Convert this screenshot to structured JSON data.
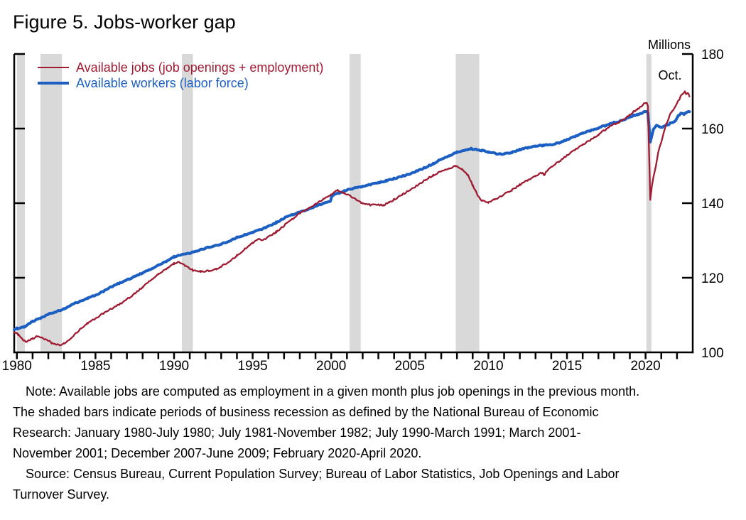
{
  "chart_data": {
    "type": "line",
    "title": "Figure 5. Jobs-worker gap",
    "unit_label": "Millions",
    "annotation": "Oct.",
    "xlabel": "",
    "ylabel": "Millions",
    "xlim": [
      1979.83,
      2023.0
    ],
    "ylim": [
      100,
      180
    ],
    "yticks": [
      100,
      120,
      140,
      160,
      180
    ],
    "xticks_labeled": [
      1980,
      1985,
      1990,
      1995,
      2000,
      2005,
      2010,
      2015,
      2020
    ],
    "xticks_minor_start": 1980,
    "xticks_minor_end": 2023,
    "grid": false,
    "legend_position": "top-left-inside",
    "axis_color": "#000000",
    "recession_color": "#d9d9d9",
    "recessions": [
      [
        1980.0,
        1980.5
      ],
      [
        1981.5,
        1982.875
      ],
      [
        1990.5,
        1991.2
      ],
      [
        2001.17,
        2001.875
      ],
      [
        2007.92,
        2009.42
      ],
      [
        2020.05,
        2020.37
      ]
    ],
    "series": [
      {
        "name": "Available workers (labor force)",
        "color": "#1c5fc2",
        "width": 4,
        "jitter": 0.16,
        "points": [
          [
            1979.83,
            106.1
          ],
          [
            1980.0,
            106.4
          ],
          [
            1980.5,
            106.9
          ],
          [
            1981.0,
            108.3
          ],
          [
            1981.5,
            109.2
          ],
          [
            1982.0,
            110.2
          ],
          [
            1982.5,
            110.9
          ],
          [
            1983.0,
            111.6
          ],
          [
            1983.5,
            112.7
          ],
          [
            1984.0,
            113.7
          ],
          [
            1984.5,
            114.5
          ],
          [
            1985.0,
            115.4
          ],
          [
            1985.5,
            116.3
          ],
          [
            1986.0,
            117.6
          ],
          [
            1986.5,
            118.5
          ],
          [
            1987.0,
            119.4
          ],
          [
            1987.5,
            120.4
          ],
          [
            1988.0,
            121.3
          ],
          [
            1988.5,
            122.2
          ],
          [
            1989.0,
            123.4
          ],
          [
            1989.5,
            124.4
          ],
          [
            1990.0,
            125.6
          ],
          [
            1990.5,
            126.2
          ],
          [
            1991.0,
            126.6
          ],
          [
            1991.5,
            127.2
          ],
          [
            1992.0,
            127.9
          ],
          [
            1992.5,
            128.5
          ],
          [
            1993.0,
            129.0
          ],
          [
            1993.5,
            129.8
          ],
          [
            1994.0,
            130.8
          ],
          [
            1994.5,
            131.5
          ],
          [
            1995.0,
            132.2
          ],
          [
            1995.5,
            132.9
          ],
          [
            1996.0,
            133.8
          ],
          [
            1996.5,
            134.8
          ],
          [
            1997.0,
            136.0
          ],
          [
            1997.5,
            136.9
          ],
          [
            1998.0,
            137.5
          ],
          [
            1998.5,
            138.3
          ],
          [
            1999.0,
            139.2
          ],
          [
            1999.5,
            139.9
          ],
          [
            1999.95,
            140.6
          ],
          [
            2000.05,
            142.0
          ],
          [
            2000.5,
            142.7
          ],
          [
            2001.0,
            143.6
          ],
          [
            2001.5,
            144.0
          ],
          [
            2002.0,
            144.5
          ],
          [
            2002.5,
            145.0
          ],
          [
            2003.0,
            145.5
          ],
          [
            2003.5,
            146.0
          ],
          [
            2004.0,
            146.6
          ],
          [
            2004.5,
            147.2
          ],
          [
            2005.0,
            147.9
          ],
          [
            2005.5,
            148.7
          ],
          [
            2006.0,
            149.6
          ],
          [
            2006.5,
            150.6
          ],
          [
            2007.0,
            151.8
          ],
          [
            2007.5,
            152.7
          ],
          [
            2008.0,
            153.6
          ],
          [
            2008.5,
            154.2
          ],
          [
            2008.9,
            154.6
          ],
          [
            2009.3,
            154.3
          ],
          [
            2009.6,
            154.1
          ],
          [
            2010.0,
            153.7
          ],
          [
            2010.5,
            153.3
          ],
          [
            2011.0,
            153.2
          ],
          [
            2011.5,
            153.6
          ],
          [
            2012.0,
            154.4
          ],
          [
            2012.5,
            154.9
          ],
          [
            2013.0,
            155.3
          ],
          [
            2013.5,
            155.5
          ],
          [
            2014.0,
            155.7
          ],
          [
            2014.5,
            156.2
          ],
          [
            2015.0,
            157.0
          ],
          [
            2015.5,
            157.8
          ],
          [
            2016.0,
            158.8
          ],
          [
            2016.5,
            159.5
          ],
          [
            2017.0,
            160.2
          ],
          [
            2017.5,
            160.9
          ],
          [
            2018.0,
            161.6
          ],
          [
            2018.5,
            162.2
          ],
          [
            2019.0,
            163.2
          ],
          [
            2019.5,
            163.8
          ],
          [
            2019.9,
            164.4
          ],
          [
            2020.08,
            164.6
          ],
          [
            2020.15,
            164.2
          ],
          [
            2020.3,
            156.4
          ],
          [
            2020.5,
            159.8
          ],
          [
            2020.7,
            160.9
          ],
          [
            2020.9,
            160.4
          ],
          [
            2021.1,
            160.4
          ],
          [
            2021.3,
            160.9
          ],
          [
            2021.5,
            161.2
          ],
          [
            2021.7,
            161.7
          ],
          [
            2021.9,
            162.1
          ],
          [
            2022.1,
            163.6
          ],
          [
            2022.3,
            164.1
          ],
          [
            2022.45,
            163.9
          ],
          [
            2022.6,
            164.3
          ],
          [
            2022.79,
            164.6
          ]
        ]
      },
      {
        "name": "Available jobs (job openings + employment)",
        "color": "#9e1b32",
        "width": 2.3,
        "jitter": 0.22,
        "points": [
          [
            1979.83,
            105.4
          ],
          [
            1980.1,
            104.8
          ],
          [
            1980.4,
            103.3
          ],
          [
            1980.6,
            102.8
          ],
          [
            1981.0,
            103.7
          ],
          [
            1981.3,
            104.3
          ],
          [
            1981.7,
            103.8
          ],
          [
            1982.2,
            102.6
          ],
          [
            1982.7,
            101.9
          ],
          [
            1983.0,
            102.3
          ],
          [
            1983.5,
            103.8
          ],
          [
            1984.0,
            106.2
          ],
          [
            1984.5,
            107.8
          ],
          [
            1985.0,
            109.2
          ],
          [
            1985.5,
            110.4
          ],
          [
            1986.0,
            111.7
          ],
          [
            1986.5,
            112.8
          ],
          [
            1987.0,
            114.2
          ],
          [
            1987.5,
            115.8
          ],
          [
            1988.0,
            117.5
          ],
          [
            1988.5,
            119.2
          ],
          [
            1989.0,
            121.0
          ],
          [
            1989.5,
            122.4
          ],
          [
            1990.0,
            123.8
          ],
          [
            1990.3,
            124.2
          ],
          [
            1990.7,
            123.3
          ],
          [
            1991.2,
            122.0
          ],
          [
            1991.7,
            121.6
          ],
          [
            1992.2,
            121.8
          ],
          [
            1992.7,
            122.4
          ],
          [
            1993.0,
            123.0
          ],
          [
            1993.5,
            124.3
          ],
          [
            1994.0,
            125.9
          ],
          [
            1994.5,
            127.7
          ],
          [
            1995.0,
            129.4
          ],
          [
            1995.4,
            130.3
          ],
          [
            1995.7,
            130.1
          ],
          [
            1996.0,
            131.0
          ],
          [
            1996.5,
            132.3
          ],
          [
            1997.0,
            134.0
          ],
          [
            1997.5,
            135.7
          ],
          [
            1998.0,
            137.2
          ],
          [
            1998.5,
            138.5
          ],
          [
            1999.0,
            139.8
          ],
          [
            1999.5,
            141.0
          ],
          [
            2000.0,
            142.4
          ],
          [
            2000.4,
            143.4
          ],
          [
            2000.8,
            142.8
          ],
          [
            2001.2,
            142.0
          ],
          [
            2001.6,
            140.8
          ],
          [
            2002.0,
            140.0
          ],
          [
            2002.5,
            139.5
          ],
          [
            2003.0,
            139.6
          ],
          [
            2003.3,
            139.4
          ],
          [
            2003.7,
            140.2
          ],
          [
            2004.0,
            141.0
          ],
          [
            2004.5,
            142.2
          ],
          [
            2005.0,
            143.6
          ],
          [
            2005.5,
            144.8
          ],
          [
            2006.0,
            146.3
          ],
          [
            2006.5,
            147.5
          ],
          [
            2007.0,
            148.6
          ],
          [
            2007.5,
            149.3
          ],
          [
            2007.9,
            149.9
          ],
          [
            2008.3,
            149.2
          ],
          [
            2008.7,
            147.5
          ],
          [
            2009.0,
            144.8
          ],
          [
            2009.3,
            142.2
          ],
          [
            2009.6,
            140.6
          ],
          [
            2010.0,
            140.2
          ],
          [
            2010.4,
            141.0
          ],
          [
            2011.0,
            142.4
          ],
          [
            2011.5,
            143.5
          ],
          [
            2012.0,
            145.0
          ],
          [
            2012.5,
            146.2
          ],
          [
            2013.0,
            147.3
          ],
          [
            2013.45,
            148.2
          ],
          [
            2013.55,
            147.3
          ],
          [
            2013.7,
            148.5
          ],
          [
            2014.0,
            149.8
          ],
          [
            2014.5,
            151.2
          ],
          [
            2015.0,
            152.8
          ],
          [
            2015.5,
            154.2
          ],
          [
            2016.0,
            155.7
          ],
          [
            2016.5,
            157.0
          ],
          [
            2017.0,
            158.4
          ],
          [
            2017.5,
            159.9
          ],
          [
            2018.0,
            161.2
          ],
          [
            2018.5,
            162.2
          ],
          [
            2019.0,
            163.8
          ],
          [
            2019.5,
            165.3
          ],
          [
            2019.9,
            166.6
          ],
          [
            2020.08,
            166.9
          ],
          [
            2020.15,
            166.0
          ],
          [
            2020.3,
            140.9
          ],
          [
            2020.4,
            144.5
          ],
          [
            2020.5,
            147.0
          ],
          [
            2020.65,
            149.8
          ],
          [
            2020.8,
            153.5
          ],
          [
            2021.0,
            156.5
          ],
          [
            2021.2,
            159.5
          ],
          [
            2021.35,
            161.5
          ],
          [
            2021.5,
            163.2
          ],
          [
            2021.7,
            164.8
          ],
          [
            2021.9,
            166.0
          ],
          [
            2022.05,
            167.2
          ],
          [
            2022.2,
            168.3
          ],
          [
            2022.35,
            169.3
          ],
          [
            2022.5,
            169.8
          ],
          [
            2022.6,
            169.2
          ],
          [
            2022.7,
            169.6
          ],
          [
            2022.79,
            168.7
          ]
        ]
      }
    ]
  },
  "note": {
    "lines": [
      "Note: Available jobs are computed as employment in a given month plus job openings in the previous month.",
      "The shaded bars indicate periods of business recession as defined by the National Bureau of Economic",
      "Research: January 1980-July 1980; July 1981-November 1982; July 1990-March 1991; March 2001-",
      "November 2001; December 2007-June 2009; February 2020-April 2020.",
      "Source: Census Bureau, Current Population Survey; Bureau of Labor Statistics, Job Openings and Labor",
      "Turnover Survey."
    ]
  }
}
